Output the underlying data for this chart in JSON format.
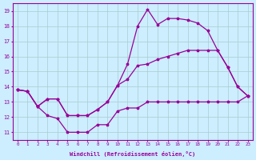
{
  "xlabel": "Windchill (Refroidissement éolien,°C)",
  "background_color": "#cceeff",
  "grid_color": "#aacccc",
  "line_color": "#990099",
  "hours": [
    0,
    1,
    2,
    3,
    4,
    5,
    6,
    7,
    8,
    9,
    10,
    11,
    12,
    13,
    14,
    15,
    16,
    17,
    18,
    19,
    20,
    21,
    22,
    23
  ],
  "line1": [
    13.8,
    13.7,
    12.7,
    12.1,
    11.9,
    11.0,
    11.0,
    11.0,
    11.5,
    11.5,
    12.4,
    12.6,
    12.6,
    13.0,
    13.0,
    13.0,
    13.0,
    13.0,
    13.0,
    13.0,
    13.0,
    13.0,
    13.0,
    13.4
  ],
  "line2": [
    13.8,
    13.7,
    12.7,
    13.2,
    13.2,
    12.1,
    12.1,
    12.1,
    12.5,
    13.0,
    14.1,
    14.5,
    15.4,
    15.5,
    15.8,
    16.0,
    16.2,
    16.4,
    16.4,
    16.4,
    16.4,
    15.3,
    14.0,
    13.4
  ],
  "line3": [
    13.8,
    13.7,
    12.7,
    13.2,
    13.2,
    12.1,
    12.1,
    12.1,
    12.5,
    13.0,
    14.1,
    15.5,
    18.0,
    19.1,
    18.1,
    18.5,
    18.5,
    18.4,
    18.2,
    17.7,
    16.4,
    15.3,
    14.0,
    13.4
  ],
  "ylim": [
    10.5,
    19.5
  ],
  "yticks": [
    11,
    12,
    13,
    14,
    15,
    16,
    17,
    18,
    19
  ],
  "xlim": [
    -0.5,
    23.5
  ],
  "xticks": [
    0,
    1,
    2,
    3,
    4,
    5,
    6,
    7,
    8,
    9,
    10,
    11,
    12,
    13,
    14,
    15,
    16,
    17,
    18,
    19,
    20,
    21,
    22,
    23
  ]
}
